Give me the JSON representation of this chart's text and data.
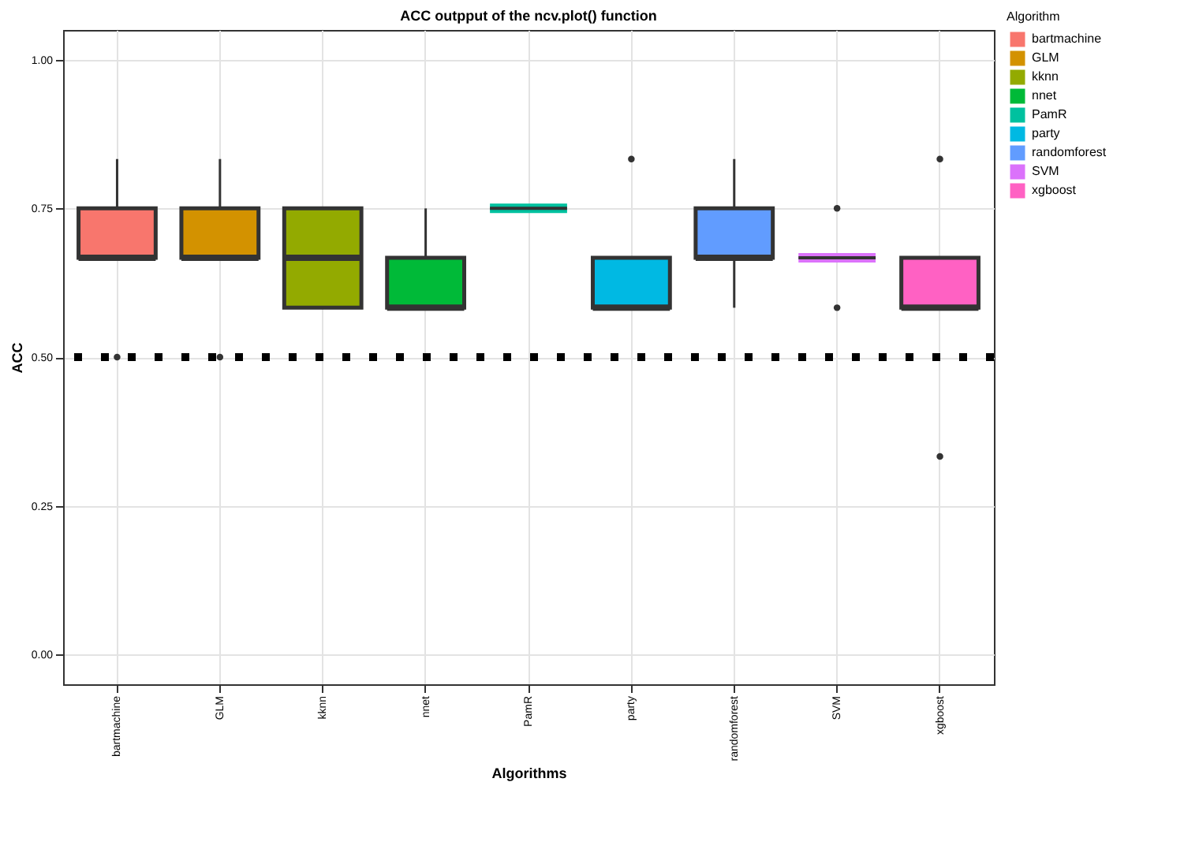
{
  "chart_data": {
    "type": "box",
    "title": "ACC outpput of the ncv.plot() function",
    "xlabel": "Algorithms",
    "ylabel": "ACC",
    "legend_title": "Algorithm",
    "categories": [
      "bartmachine",
      "GLM",
      "kknn",
      "nnet",
      "PamR",
      "party",
      "randomforest",
      "SVM",
      "xgboost"
    ],
    "series": [
      {
        "name": "bartmachine",
        "color": "#f8766d",
        "boxes": [
          {
            "low": 0.667,
            "q1": 0.667,
            "median": 0.667,
            "q3": 0.75,
            "high": 0.833,
            "outliers": [
              0.5
            ]
          },
          null,
          null,
          null,
          null,
          null,
          null,
          null,
          null
        ]
      },
      {
        "name": "GLM",
        "color": "#d39200",
        "boxes": [
          null,
          {
            "low": 0.667,
            "q1": 0.667,
            "median": 0.667,
            "q3": 0.75,
            "high": 0.833,
            "outliers": [
              0.5
            ]
          },
          null,
          null,
          null,
          null,
          null,
          null,
          null
        ]
      },
      {
        "name": "kknn",
        "color": "#93aa00",
        "boxes": [
          null,
          null,
          {
            "low": 0.583,
            "q1": 0.583,
            "median": 0.667,
            "q3": 0.75,
            "high": 0.75
          },
          null,
          null,
          null,
          null,
          null,
          null
        ]
      },
      {
        "name": "nnet",
        "color": "#00ba38",
        "boxes": [
          null,
          null,
          null,
          {
            "low": 0.583,
            "q1": 0.583,
            "median": 0.583,
            "q3": 0.667,
            "high": 0.75
          },
          null,
          null,
          null,
          null,
          null
        ]
      },
      {
        "name": "PamR",
        "color": "#00c19f",
        "boxes": [
          null,
          null,
          null,
          null,
          {
            "low": 0.75,
            "q1": 0.75,
            "median": 0.75,
            "q3": 0.75,
            "high": 0.75
          },
          null,
          null,
          null,
          null
        ]
      },
      {
        "name": "party",
        "color": "#00b9e3",
        "boxes": [
          null,
          null,
          null,
          null,
          null,
          {
            "low": 0.583,
            "q1": 0.583,
            "median": 0.583,
            "q3": 0.667,
            "high": 0.667,
            "outliers": [
              0.833
            ]
          },
          null,
          null,
          null
        ]
      },
      {
        "name": "randomforest",
        "color": "#619cff",
        "boxes": [
          null,
          null,
          null,
          null,
          null,
          null,
          {
            "low": 0.583,
            "q1": 0.667,
            "median": 0.667,
            "q3": 0.75,
            "high": 0.833
          },
          null,
          null
        ]
      },
      {
        "name": "SVM",
        "color": "#db72fb",
        "boxes": [
          null,
          null,
          null,
          null,
          null,
          null,
          null,
          {
            "low": 0.667,
            "q1": 0.667,
            "median": 0.667,
            "q3": 0.667,
            "high": 0.667,
            "outliers": [
              0.75,
              0.583
            ]
          },
          null
        ]
      },
      {
        "name": "xgboost",
        "color": "#ff61c3",
        "boxes": [
          null,
          null,
          null,
          null,
          null,
          null,
          null,
          null,
          {
            "low": 0.583,
            "q1": 0.583,
            "median": 0.583,
            "q3": 0.667,
            "high": 0.667,
            "outliers": [
              0.833,
              0.333
            ]
          }
        ]
      }
    ],
    "ylim": [
      -0.05,
      1.05
    ],
    "yticks": [
      {
        "value": 0,
        "label": "0.00"
      },
      0.25,
      {
        "value": 0.5,
        "label": "0.50"
      },
      0.75,
      {
        "value": 1,
        "label": "1.00"
      }
    ],
    "ref_lines": [
      {
        "axis": "y",
        "value": 0.5,
        "label": null,
        "color": "#000000",
        "line_style": "dotted"
      }
    ],
    "grid": true,
    "legend": "right"
  }
}
